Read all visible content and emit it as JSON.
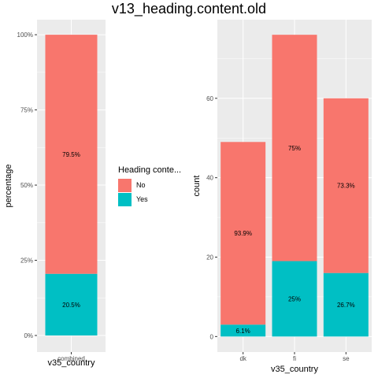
{
  "chart_title": "v13_heading.content.old",
  "legend": {
    "title": "Heading conte...",
    "items": [
      {
        "label": "No",
        "color": "#F8766D"
      },
      {
        "label": "Yes",
        "color": "#00BFC4"
      }
    ]
  },
  "chart_data": [
    {
      "type": "bar",
      "stacked": true,
      "categories": [
        "combined"
      ],
      "series": [
        {
          "name": "Yes",
          "values": [
            20.5
          ],
          "labels": [
            "20.5%"
          ],
          "color": "#00BFC4"
        },
        {
          "name": "No",
          "values": [
            79.5
          ],
          "labels": [
            "79.5%"
          ],
          "color": "#F8766D"
        }
      ],
      "xlabel": "v35_country",
      "ylabel": "percentage",
      "ylim": [
        0,
        100
      ],
      "yticks": [
        0,
        25,
        50,
        75,
        100
      ],
      "ytick_labels": [
        "0%",
        "25%",
        "50%",
        "75%",
        "100%"
      ],
      "grid": true
    },
    {
      "type": "bar",
      "stacked": true,
      "categories": [
        "dk",
        "fi",
        "se"
      ],
      "series": [
        {
          "name": "Yes",
          "values": [
            3,
            19,
            16
          ],
          "labels": [
            "6.1%",
            "25%",
            "26.7%"
          ],
          "color": "#00BFC4"
        },
        {
          "name": "No",
          "values": [
            46,
            57,
            44
          ],
          "labels": [
            "93.9%",
            "75%",
            "73.3%"
          ],
          "color": "#F8766D"
        }
      ],
      "xlabel": "v35_country",
      "ylabel": "count",
      "ylim": [
        0,
        80
      ],
      "yticks": [
        0,
        20,
        40,
        60
      ],
      "ytick_labels": [
        "0",
        "20",
        "40",
        "60"
      ],
      "grid": true
    }
  ]
}
